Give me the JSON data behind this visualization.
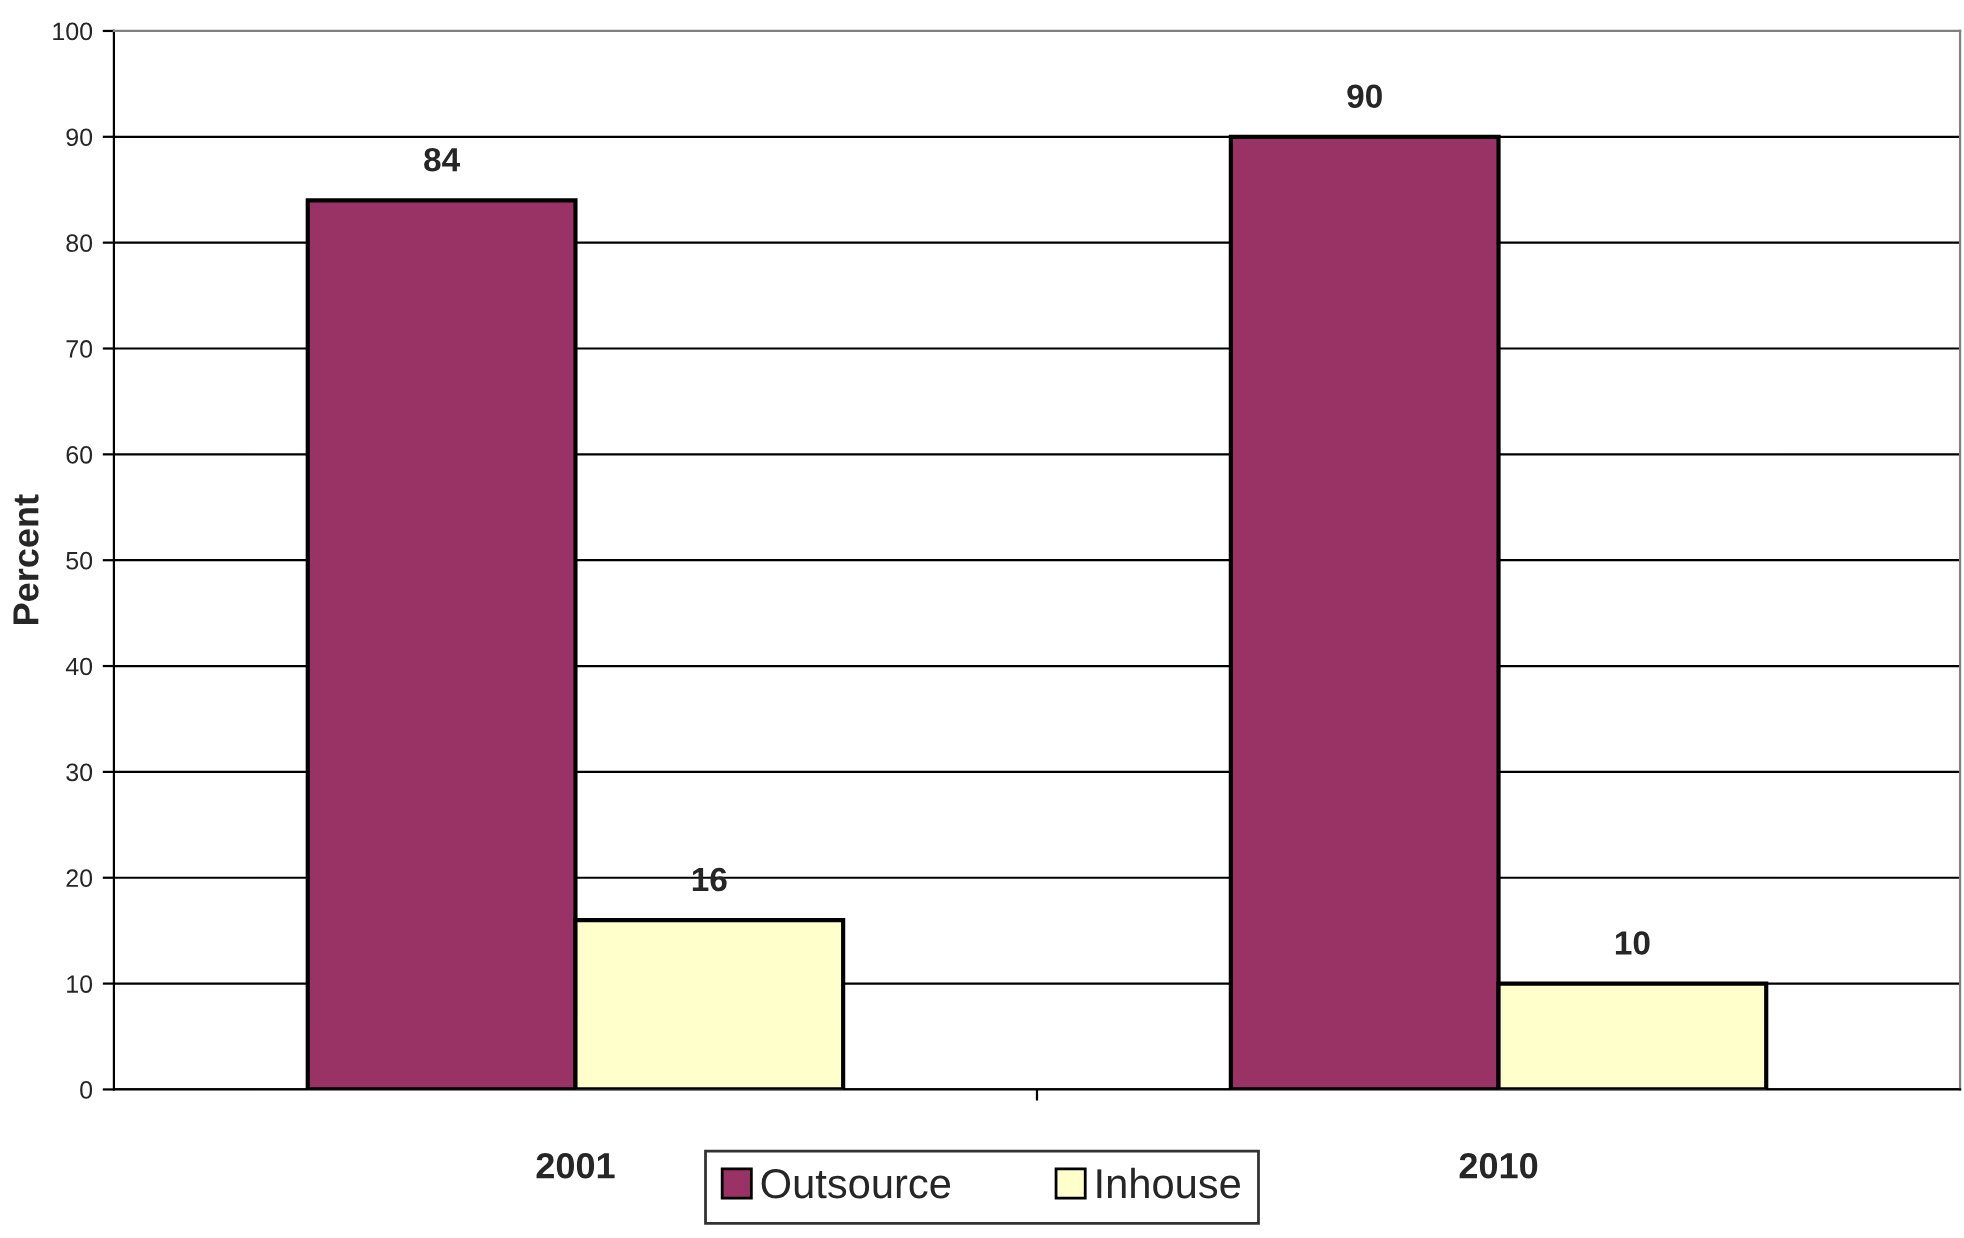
{
  "chart_data": {
    "type": "bar",
    "ylabel": "Percent",
    "categories": [
      "2001",
      "2010"
    ],
    "series": [
      {
        "name": "Outsource",
        "color": "#993366",
        "values": [
          84,
          90
        ]
      },
      {
        "name": "Inhouse",
        "color": "#ffffcc",
        "values": [
          16,
          10
        ]
      }
    ],
    "ylim": [
      0,
      100
    ],
    "yticks": [
      0,
      10,
      20,
      30,
      40,
      50,
      60,
      70,
      80,
      90,
      100
    ],
    "grid": "y",
    "legend": "bottom",
    "data_labels": true
  }
}
